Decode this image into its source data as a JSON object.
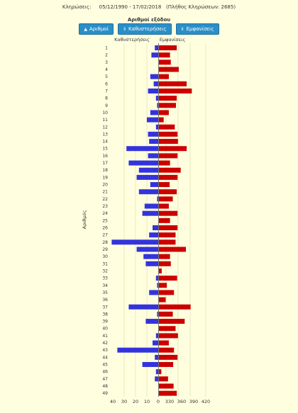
{
  "header": {
    "label": "Κληρώσεις:",
    "range": "05/12/1990 - 17/02/2018",
    "count_note": "(Πλήθος Κληρώσεων: 2685)"
  },
  "sort": {
    "title": "Αριθμοί εξόδου",
    "buttons": [
      "Αριθμοί",
      "Καθυστερήσεις",
      "Εμφανίσεις"
    ]
  },
  "colors": {
    "delays": "#3333dd",
    "appearances": "#cc0000",
    "grid": "#d8d8a0",
    "button": "#2a8fc7"
  },
  "chart_data": {
    "type": "bar",
    "orientation": "horizontal-diverging",
    "ylabel": "Αριθμός",
    "categories": [
      "1",
      "2",
      "3",
      "4",
      "5",
      "6",
      "7",
      "8",
      "9",
      "10",
      "11",
      "12",
      "13",
      "14",
      "15",
      "16",
      "17",
      "18",
      "19",
      "20",
      "21",
      "22",
      "23",
      "24",
      "25",
      "26",
      "27",
      "28",
      "29",
      "30",
      "31",
      "32",
      "33",
      "34",
      "35",
      "36",
      "37",
      "38",
      "39",
      "40",
      "41",
      "42",
      "43",
      "44",
      "45",
      "46",
      "47",
      "48",
      "49"
    ],
    "series": [
      {
        "name": "Καθυστερήσεις",
        "side": "left",
        "values": [
          3,
          6,
          0,
          0,
          7,
          4,
          9,
          2,
          1,
          7,
          10,
          2,
          9,
          8,
          28,
          9,
          26,
          17,
          19,
          7,
          17,
          1,
          12,
          14,
          0,
          5,
          8,
          41,
          19,
          13,
          11,
          0,
          2,
          1,
          8,
          0,
          26,
          1,
          11,
          0,
          2,
          5,
          36,
          3,
          14,
          2,
          3,
          0,
          0
        ]
      },
      {
        "name": "Εμφανίσεις",
        "side": "right",
        "values": [
          345,
          328,
          330,
          350,
          325,
          370,
          383,
          345,
          343,
          325,
          312,
          340,
          347,
          348,
          370,
          347,
          328,
          355,
          347,
          327,
          345,
          335,
          325,
          347,
          328,
          347,
          342,
          342,
          368,
          328,
          330,
          307,
          346,
          320,
          338,
          317,
          380,
          335,
          365,
          342,
          348,
          325,
          338,
          347,
          336,
          306,
          323,
          337,
          345
        ]
      }
    ],
    "xlim_left": [
      0,
      40
    ],
    "xlim_right": [
      300,
      420
    ],
    "xticks": [
      "40",
      "30",
      "20",
      "10",
      "0",
      "330",
      "360",
      "390",
      "420"
    ],
    "grid": true
  }
}
